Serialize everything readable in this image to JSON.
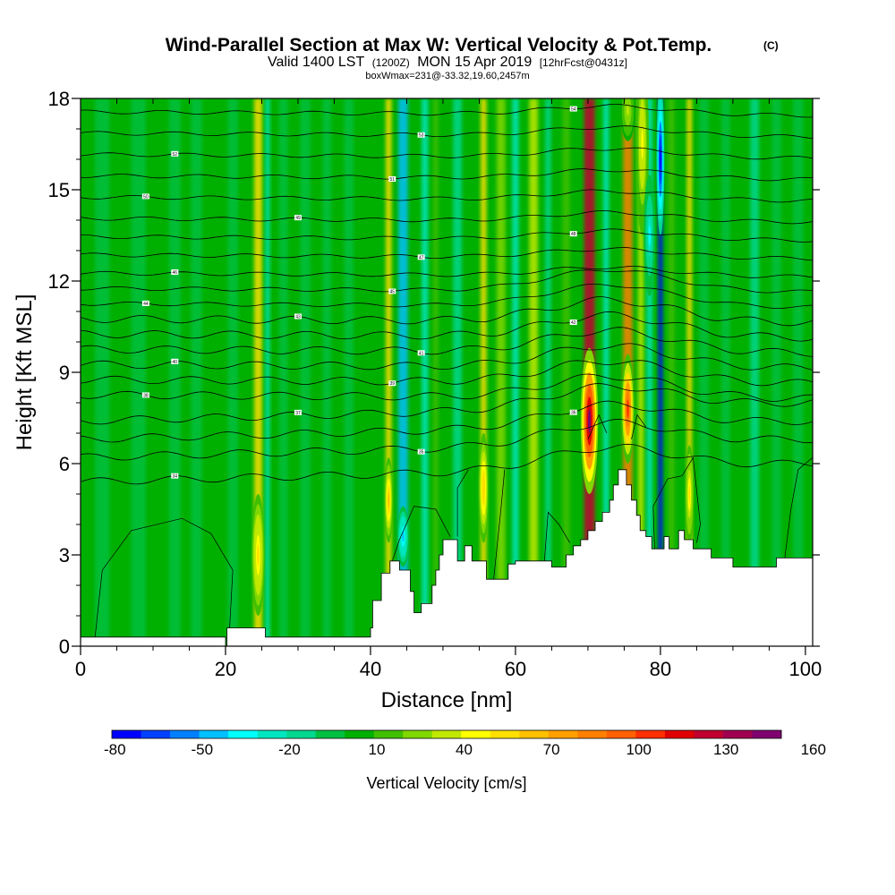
{
  "chart_data": {
    "type": "heatmap",
    "title": "Wind-Parallel Section at Max W: Vertical Velocity & Pot.Temp.",
    "title_suffix": "(C)",
    "subtitle": {
      "part1": "Valid 1400 LST",
      "part2": "(1200Z)",
      "part3": "MON 15 Apr 2019",
      "part4": "[12hrFcst@0431z]"
    },
    "subtitle2": "boxWmax=231@-33.32,19.60,2457m",
    "xlabel": "Distance [nm]",
    "ylabel": "Height [Kft MSL]",
    "xlim": [
      0,
      101
    ],
    "ylim": [
      0,
      18
    ],
    "x_ticks": [
      "0",
      "20",
      "40",
      "60",
      "80",
      "100"
    ],
    "y_ticks": [
      "0",
      "3",
      "6",
      "9",
      "12",
      "15",
      "18"
    ],
    "x_tick_values": [
      0,
      20,
      40,
      60,
      80,
      100
    ],
    "y_tick_values": [
      0,
      3,
      6,
      9,
      12,
      15,
      18
    ],
    "colorbar": {
      "label": "Vertical Velocity [cm/s]",
      "tick_labels": [
        "-80",
        "-50",
        "-20",
        "10",
        "40",
        "70",
        "100",
        "130",
        "160"
      ],
      "colors": [
        "#0000ff",
        "#0040ff",
        "#0080ff",
        "#00c0ff",
        "#00ffff",
        "#00e6c0",
        "#00d890",
        "#00c040",
        "#00b000",
        "#40c000",
        "#80d800",
        "#c0e800",
        "#ffff00",
        "#ffe000",
        "#ffc000",
        "#ffa000",
        "#ff8000",
        "#ff6000",
        "#ff3000",
        "#e00000",
        "#c00030",
        "#a00050",
        "#800070"
      ]
    },
    "background_w": 12,
    "columns": [
      {
        "x": 3,
        "width": 2.0,
        "w": 8
      },
      {
        "x": 8,
        "width": 2.0,
        "w": 5
      },
      {
        "x": 13,
        "width": 1.6,
        "w": 6
      },
      {
        "x": 16,
        "width": 1.5,
        "w": 6
      },
      {
        "x": 21,
        "width": 1.4,
        "w": 4
      },
      {
        "x": 24.5,
        "width": 1.1,
        "w": 70
      },
      {
        "x": 25.8,
        "width": 0.6,
        "w": -20
      },
      {
        "x": 28,
        "width": 1.2,
        "w": 2
      },
      {
        "x": 31,
        "width": 1.4,
        "w": 3
      },
      {
        "x": 34,
        "width": 1.2,
        "w": 5
      },
      {
        "x": 37,
        "width": 1.3,
        "w": 4
      },
      {
        "x": 42.5,
        "width": 0.8,
        "w": 70
      },
      {
        "x": 44.5,
        "width": 1.3,
        "w": -40
      },
      {
        "x": 47.5,
        "width": 0.9,
        "w": -20
      },
      {
        "x": 49,
        "width": 0.7,
        "w": 30
      },
      {
        "x": 52,
        "width": 1.2,
        "w": -10
      },
      {
        "x": 55.6,
        "width": 0.8,
        "w": 75
      },
      {
        "x": 58,
        "width": 1.2,
        "w": 35
      },
      {
        "x": 60,
        "width": 0.9,
        "w": -20
      },
      {
        "x": 62.5,
        "width": 1.2,
        "w": 50
      },
      {
        "x": 64.5,
        "width": 0.8,
        "w": -10
      },
      {
        "x": 67,
        "width": 1.0,
        "w": 30
      },
      {
        "x": 70.2,
        "width": 1.5,
        "w": 150
      },
      {
        "x": 72.5,
        "width": 0.8,
        "w": -20
      },
      {
        "x": 75.5,
        "width": 1.3,
        "w": 105
      },
      {
        "x": 77.3,
        "width": 0.8,
        "w": 45
      },
      {
        "x": 78.5,
        "width": 0.8,
        "w": -20
      },
      {
        "x": 80,
        "width": 0.6,
        "w": -80
      },
      {
        "x": 81.5,
        "width": 0.9,
        "w": 30
      },
      {
        "x": 84,
        "width": 0.7,
        "w": 65
      },
      {
        "x": 86,
        "width": 1.3,
        "w": 6
      },
      {
        "x": 89,
        "width": 1.2,
        "w": 4
      },
      {
        "x": 93,
        "width": 1.2,
        "w": -5
      },
      {
        "x": 96,
        "width": 1.3,
        "w": 3
      },
      {
        "x": 99,
        "width": 1.4,
        "w": 5
      }
    ],
    "updrafts": [
      {
        "x": 24.5,
        "y": 3.0,
        "w": 72,
        "width": 0.9,
        "height": 2.0
      },
      {
        "x": 42.5,
        "y": 4.8,
        "w": 80,
        "width": 0.6,
        "height": 1.4
      },
      {
        "x": 55.6,
        "y": 5.2,
        "w": 75,
        "width": 0.7,
        "height": 1.8
      },
      {
        "x": 70.2,
        "y": 7.4,
        "w": 165,
        "width": 1.2,
        "height": 2.4
      },
      {
        "x": 75.5,
        "y": 7.8,
        "w": 125,
        "width": 0.9,
        "height": 1.8
      },
      {
        "x": 84,
        "y": 5.0,
        "w": 70,
        "width": 0.6,
        "height": 1.6
      },
      {
        "x": 77.5,
        "y": 16.5,
        "w": 60,
        "width": 0.9,
        "height": 3.0
      },
      {
        "x": 75.5,
        "y": 17.6,
        "w": 45,
        "width": 1.0,
        "height": 1.0
      }
    ],
    "downdrafts": [
      {
        "x": 80.0,
        "y": 16.0,
        "w": -80,
        "width": 0.55,
        "height": 2.5
      },
      {
        "x": 78.5,
        "y": 13.5,
        "w": -25,
        "width": 0.8,
        "height": 2.0
      },
      {
        "x": 44.5,
        "y": 3.6,
        "w": -40,
        "width": 0.8,
        "height": 1.0
      }
    ],
    "terrain": [
      [
        0,
        0.3
      ],
      [
        20,
        0.3
      ],
      [
        20,
        0.0
      ],
      [
        20.2,
        0.0
      ],
      [
        20.2,
        0.6
      ],
      [
        25.5,
        0.6
      ],
      [
        25.5,
        0.3
      ],
      [
        40,
        0.3
      ],
      [
        40,
        0.6
      ],
      [
        40.3,
        0.6
      ],
      [
        40.3,
        1.5
      ],
      [
        41.5,
        1.5
      ],
      [
        41.5,
        2.4
      ],
      [
        42.7,
        2.4
      ],
      [
        42.7,
        2.8
      ],
      [
        44,
        2.8
      ],
      [
        44,
        2.5
      ],
      [
        45.5,
        2.5
      ],
      [
        45.5,
        1.8
      ],
      [
        46,
        1.8
      ],
      [
        46,
        1.1
      ],
      [
        47,
        1.1
      ],
      [
        47,
        1.4
      ],
      [
        48.5,
        1.4
      ],
      [
        48.5,
        2.0
      ],
      [
        49,
        2.0
      ],
      [
        49,
        2.5
      ],
      [
        49.5,
        2.5
      ],
      [
        49.5,
        3.0
      ],
      [
        50,
        3.0
      ],
      [
        50,
        3.5
      ],
      [
        52,
        3.5
      ],
      [
        52,
        2.8
      ],
      [
        53,
        2.8
      ],
      [
        53,
        3.3
      ],
      [
        54,
        3.3
      ],
      [
        54,
        2.8
      ],
      [
        56,
        2.8
      ],
      [
        56,
        2.2
      ],
      [
        59,
        2.2
      ],
      [
        59,
        2.7
      ],
      [
        60,
        2.7
      ],
      [
        60,
        2.8
      ],
      [
        65,
        2.8
      ],
      [
        65,
        2.6
      ],
      [
        67,
        2.6
      ],
      [
        67,
        3.0
      ],
      [
        68,
        3.0
      ],
      [
        68,
        3.3
      ],
      [
        69,
        3.3
      ],
      [
        69,
        3.5
      ],
      [
        70,
        3.5
      ],
      [
        70,
        3.8
      ],
      [
        71,
        3.8
      ],
      [
        71,
        4.1
      ],
      [
        72,
        4.1
      ],
      [
        72,
        4.4
      ],
      [
        73,
        4.4
      ],
      [
        73,
        4.8
      ],
      [
        73.5,
        4.8
      ],
      [
        73.5,
        5.3
      ],
      [
        74.2,
        5.3
      ],
      [
        74.2,
        5.8
      ],
      [
        75.3,
        5.8
      ],
      [
        75.3,
        5.3
      ],
      [
        76,
        5.3
      ],
      [
        76,
        4.8
      ],
      [
        76.7,
        4.8
      ],
      [
        76.7,
        4.3
      ],
      [
        77.2,
        4.3
      ],
      [
        77.2,
        3.8
      ],
      [
        78,
        3.8
      ],
      [
        78,
        3.6
      ],
      [
        78.8,
        3.6
      ],
      [
        78.8,
        3.2
      ],
      [
        80.5,
        3.2
      ],
      [
        80.5,
        3.6
      ],
      [
        81.2,
        3.6
      ],
      [
        81.2,
        3.2
      ],
      [
        82.5,
        3.2
      ],
      [
        82.5,
        3.8
      ],
      [
        83.3,
        3.8
      ],
      [
        83.3,
        3.5
      ],
      [
        84.5,
        3.5
      ],
      [
        84.5,
        3.2
      ],
      [
        87,
        3.2
      ],
      [
        87,
        2.9
      ],
      [
        90,
        2.9
      ],
      [
        90,
        2.6
      ],
      [
        96,
        2.6
      ],
      [
        96,
        2.9
      ],
      [
        101,
        2.9
      ]
    ],
    "theta_levels": [
      {
        "base": 5.7,
        "label": "34"
      },
      {
        "base": 6.5,
        "label": "35"
      },
      {
        "base": 7.1,
        "label": "36"
      },
      {
        "base": 7.7,
        "label": "37"
      },
      {
        "base": 8.2,
        "label": "38"
      },
      {
        "base": 8.7,
        "label": "39"
      },
      {
        "base": 9.2,
        "label": "40"
      },
      {
        "base": 9.7,
        "label": "41"
      },
      {
        "base": 10.2,
        "label": "42"
      },
      {
        "base": 10.7,
        "label": "43"
      },
      {
        "base": 11.2,
        "label": "44"
      },
      {
        "base": 11.7,
        "label": "45"
      },
      {
        "base": 12.2,
        "label": "46"
      },
      {
        "base": 12.8,
        "label": "47"
      },
      {
        "base": 13.4,
        "label": "48"
      },
      {
        "base": 14.0,
        "label": "49"
      },
      {
        "base": 14.7,
        "label": "50"
      },
      {
        "base": 15.4,
        "label": "51"
      },
      {
        "base": 16.1,
        "label": "52"
      },
      {
        "base": 16.8,
        "label": "53"
      },
      {
        "base": 17.5,
        "label": "54"
      }
    ],
    "theta_bump": {
      "x": 73,
      "amp": 0.7,
      "width": 12
    },
    "w_zero_contours": [
      [
        [
          2,
          0.3
        ],
        [
          3,
          2.5
        ],
        [
          7,
          3.8
        ],
        [
          14,
          4.2
        ],
        [
          18,
          3.7
        ],
        [
          21,
          2.5
        ],
        [
          20.5,
          0.3
        ]
      ],
      [
        [
          43,
          2.8
        ],
        [
          44,
          3.5
        ],
        [
          46,
          4.6
        ],
        [
          49,
          4.5
        ],
        [
          51,
          3.6
        ]
      ],
      [
        [
          52,
          3.6
        ],
        [
          52,
          5.2
        ],
        [
          53.5,
          5.8
        ]
      ],
      [
        [
          57,
          2.2
        ],
        [
          58,
          4.5
        ],
        [
          58.5,
          5.8
        ]
      ],
      [
        [
          64,
          2.8
        ],
        [
          64.5,
          4.4
        ],
        [
          66,
          4.0
        ],
        [
          67.5,
          3.4
        ]
      ],
      [
        [
          70,
          6.8
        ],
        [
          71.5,
          7.6
        ],
        [
          72.6,
          7.0
        ]
      ],
      [
        [
          76,
          6.8
        ],
        [
          76.8,
          7.6
        ],
        [
          78,
          7.2
        ]
      ],
      [
        [
          79.2,
          3.2
        ],
        [
          79,
          4.6
        ],
        [
          81,
          5.5
        ],
        [
          83,
          5.6
        ],
        [
          84.5,
          6.2
        ],
        [
          85.5,
          4.0
        ],
        [
          85,
          3.4
        ]
      ],
      [
        [
          97,
          2.6
        ],
        [
          98,
          4.5
        ],
        [
          99,
          5.8
        ],
        [
          101,
          6.2
        ]
      ]
    ]
  }
}
